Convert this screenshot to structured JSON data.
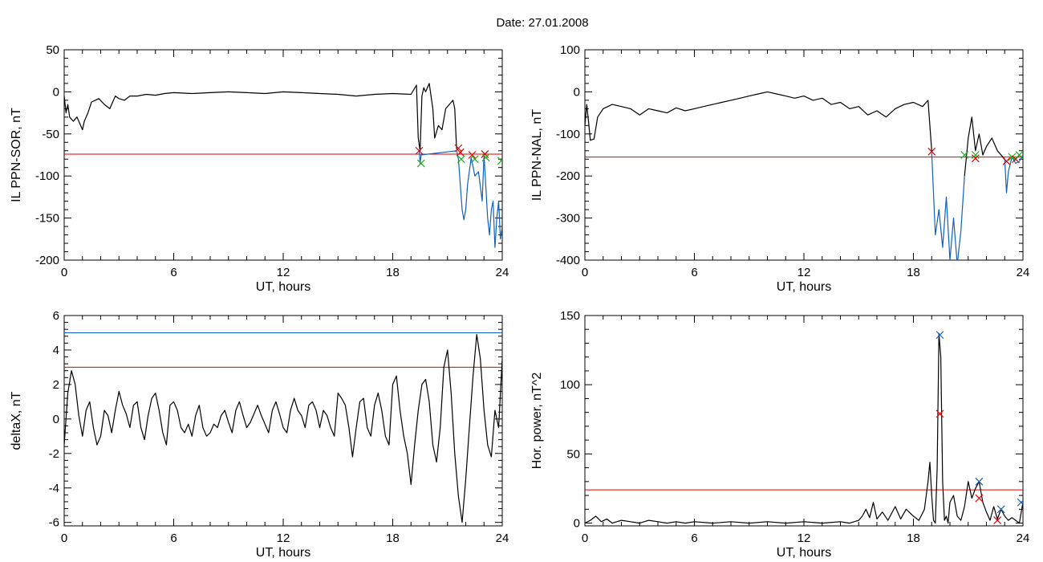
{
  "figure": {
    "title": "Date:  27.01.2008"
  },
  "colors": {
    "black": "#000000",
    "red": "#e00000",
    "blue": "#1060c0",
    "green": "#10b010"
  },
  "chart_data": [
    {
      "type": "line",
      "xlabel": "UT, hours",
      "ylabel": "IL PPN-SOR, nT",
      "xlim": [
        0,
        24
      ],
      "ylim": [
        -200,
        50
      ],
      "xticks": [
        0,
        6,
        12,
        18,
        24
      ],
      "yticks": [
        -200,
        -150,
        -100,
        -50,
        0,
        50
      ],
      "threshold": {
        "value": -74,
        "color": "red"
      },
      "series": [
        {
          "color": "black",
          "x": [
            0,
            0.1,
            0.2,
            0.3,
            0.5,
            0.7,
            0.9,
            1.0,
            1.1,
            1.3,
            1.5,
            1.7,
            1.9,
            2.2,
            2.5,
            2.8,
            3.0,
            3.3,
            3.6,
            4.0,
            4.5,
            5.0,
            5.5,
            6.0,
            7.0,
            8.0,
            9.0,
            10.0,
            11.0,
            12.0,
            13.0,
            14.0,
            15.0,
            16.0,
            17.0,
            18.0,
            19.0,
            19.3,
            19.4,
            19.5,
            19.6,
            19.7,
            19.8,
            20.0,
            20.2,
            20.3,
            20.5,
            20.7,
            20.9,
            21.1,
            21.3,
            21.4,
            21.5
          ],
          "y": [
            -5,
            -25,
            -15,
            -30,
            -35,
            -30,
            -40,
            -45,
            -35,
            -25,
            -12,
            -10,
            -8,
            -15,
            -20,
            -5,
            -8,
            -10,
            -5,
            -5,
            -3,
            -4,
            -2,
            -1,
            -2,
            -1,
            0,
            -1,
            -2,
            0,
            -1,
            -2,
            -3,
            -5,
            -3,
            -2,
            -3,
            8,
            -55,
            -70,
            -5,
            5,
            0,
            10,
            -20,
            -55,
            -40,
            -45,
            -20,
            -15,
            -10,
            -20,
            -68
          ]
        },
        {
          "color": "blue",
          "x": [
            19.45,
            19.5,
            19.55,
            21.5,
            21.6,
            21.7,
            21.8,
            21.9,
            22.0,
            22.1,
            22.3,
            22.5,
            22.7,
            22.9,
            23.0,
            23.2,
            23.3,
            23.4,
            23.5,
            23.6,
            23.7,
            23.8,
            23.9,
            24.0
          ],
          "y": [
            -70,
            -85,
            -75,
            -70,
            -80,
            -110,
            -140,
            -152,
            -140,
            -110,
            -78,
            -100,
            -95,
            -130,
            -75,
            -150,
            -170,
            -140,
            -130,
            -185,
            -150,
            -130,
            -175,
            -160
          ]
        }
      ],
      "markers": [
        {
          "x": 19.45,
          "y": -70,
          "color": "red"
        },
        {
          "x": 19.55,
          "y": -85,
          "color": "green"
        },
        {
          "x": 21.6,
          "y": -67,
          "color": "red"
        },
        {
          "x": 21.7,
          "y": -72,
          "color": "red"
        },
        {
          "x": 21.75,
          "y": -80,
          "color": "green"
        },
        {
          "x": 22.35,
          "y": -75,
          "color": "red"
        },
        {
          "x": 22.5,
          "y": -80,
          "color": "green"
        },
        {
          "x": 23.05,
          "y": -74,
          "color": "red"
        },
        {
          "x": 23.1,
          "y": -78,
          "color": "green"
        },
        {
          "x": 23.95,
          "y": -82,
          "color": "green"
        }
      ]
    },
    {
      "type": "line",
      "xlabel": "UT, hours",
      "ylabel": "IL PPN-NAL, nT",
      "xlim": [
        0,
        24
      ],
      "ylim": [
        -400,
        100
      ],
      "xticks": [
        0,
        6,
        12,
        18,
        24
      ],
      "yticks": [
        -400,
        -300,
        -200,
        -100,
        0,
        100
      ],
      "threshold": {
        "value": -155,
        "color": "red"
      },
      "series": [
        {
          "color": "black",
          "x": [
            0,
            0.1,
            0.2,
            0.3,
            0.5,
            0.7,
            1.0,
            1.5,
            2.0,
            2.5,
            3.0,
            3.5,
            4.0,
            4.5,
            5.0,
            5.5,
            6.0,
            6.5,
            7.0,
            7.5,
            8.0,
            8.5,
            9.0,
            9.5,
            10.0,
            10.5,
            11.0,
            11.5,
            12.0,
            12.5,
            13.0,
            13.5,
            14.0,
            14.5,
            15.0,
            15.5,
            16.0,
            16.5,
            17.0,
            17.5,
            18.0,
            18.5,
            18.8,
            19.0
          ],
          "y": [
            -80,
            -30,
            -70,
            -115,
            -112,
            -60,
            -40,
            -30,
            -35,
            -40,
            -55,
            -40,
            -45,
            -50,
            -38,
            -45,
            -40,
            -35,
            -30,
            -25,
            -20,
            -15,
            -10,
            -5,
            0,
            -5,
            -10,
            -15,
            -10,
            -20,
            -15,
            -30,
            -25,
            -40,
            -35,
            -55,
            -45,
            -60,
            -40,
            -30,
            -25,
            -35,
            -20,
            -140
          ]
        },
        {
          "color": "blue",
          "x": [
            19.0,
            19.2,
            19.4,
            19.6,
            19.8,
            20.0,
            20.2,
            20.4,
            20.6,
            20.8
          ],
          "y": [
            -145,
            -340,
            -280,
            -370,
            -250,
            -400,
            -300,
            -410,
            -330,
            -200
          ]
        },
        {
          "color": "black",
          "x": [
            20.8,
            21.0,
            21.2,
            21.4,
            21.6,
            21.8,
            22.0,
            22.3,
            22.6,
            23.0
          ],
          "y": [
            -200,
            -110,
            -60,
            -140,
            -100,
            -150,
            -130,
            -110,
            -140,
            -160
          ]
        },
        {
          "color": "blue",
          "x": [
            23.0,
            23.1,
            23.2,
            23.4,
            23.6,
            23.8,
            24.0
          ],
          "y": [
            -160,
            -240,
            -190,
            -155,
            -170,
            -165,
            -150
          ]
        }
      ],
      "markers": [
        {
          "x": 19.0,
          "y": -142,
          "color": "red"
        },
        {
          "x": 20.8,
          "y": -150,
          "color": "green"
        },
        {
          "x": 21.4,
          "y": -158,
          "color": "red"
        },
        {
          "x": 21.4,
          "y": -150,
          "color": "green"
        },
        {
          "x": 23.1,
          "y": -165,
          "color": "red"
        },
        {
          "x": 23.4,
          "y": -155,
          "color": "green"
        },
        {
          "x": 23.6,
          "y": -160,
          "color": "red"
        },
        {
          "x": 23.8,
          "y": -150,
          "color": "green"
        }
      ]
    },
    {
      "type": "line",
      "xlabel": "UT, hours",
      "ylabel": "deltaX, nT",
      "xlim": [
        0,
        24
      ],
      "ylim": [
        -6.2,
        6
      ],
      "xticks": [
        0,
        6,
        12,
        18,
        24
      ],
      "yticks": [
        -6,
        -4,
        -2,
        0,
        2,
        4,
        6
      ],
      "thresholds": [
        {
          "value": 5,
          "color": "blue"
        },
        {
          "value": 3,
          "color": "red"
        }
      ],
      "series": [
        {
          "color": "black",
          "x": [
            0,
            0.2,
            0.4,
            0.6,
            0.8,
            1.0,
            1.2,
            1.4,
            1.6,
            1.8,
            2.0,
            2.2,
            2.4,
            2.6,
            2.8,
            3.0,
            3.2,
            3.4,
            3.6,
            3.8,
            4.0,
            4.2,
            4.4,
            4.6,
            4.8,
            5.0,
            5.2,
            5.4,
            5.6,
            5.8,
            6.0,
            6.2,
            6.4,
            6.6,
            6.8,
            7.0,
            7.2,
            7.4,
            7.6,
            7.8,
            8.0,
            8.2,
            8.4,
            8.6,
            8.8,
            9.0,
            9.2,
            9.4,
            9.6,
            9.8,
            10.0,
            10.2,
            10.4,
            10.6,
            10.8,
            11.0,
            11.2,
            11.4,
            11.6,
            11.8,
            12.0,
            12.2,
            12.4,
            12.6,
            12.8,
            13.0,
            13.2,
            13.4,
            13.6,
            13.8,
            14.0,
            14.2,
            14.4,
            14.6,
            14.8,
            15.0,
            15.2,
            15.4,
            15.6,
            15.8,
            16.0,
            16.2,
            16.4,
            16.6,
            16.8,
            17.0,
            17.2,
            17.4,
            17.6,
            17.8,
            18.0,
            18.2,
            18.4,
            18.6,
            18.8,
            19.0,
            19.2,
            19.4,
            19.6,
            19.8,
            20.0,
            20.2,
            20.4,
            20.6,
            20.8,
            21.0,
            21.2,
            21.4,
            21.6,
            21.8,
            22.0,
            22.2,
            22.4,
            22.6,
            22.8,
            23.0,
            23.2,
            23.4,
            23.6,
            23.8,
            24.0
          ],
          "y": [
            -1.5,
            1.5,
            2.8,
            2.0,
            0.2,
            -1.0,
            0.5,
            1.0,
            -0.5,
            -1.5,
            -1.0,
            0.5,
            0.2,
            -0.8,
            0.5,
            1.6,
            0.8,
            0.3,
            -0.5,
            0.8,
            1.0,
            -0.5,
            -1.2,
            0.2,
            1.2,
            1.5,
            0.5,
            -0.8,
            -1.5,
            0.8,
            1.0,
            0.5,
            -0.5,
            -0.8,
            -0.3,
            -1.0,
            0.2,
            0.8,
            -0.5,
            -1.0,
            -0.8,
            -0.3,
            -0.5,
            0.2,
            0.5,
            -0.2,
            -0.8,
            0.5,
            1.0,
            0.2,
            -0.5,
            -0.2,
            0.3,
            0.8,
            0.2,
            -0.3,
            -0.8,
            0.5,
            1.0,
            0.3,
            -0.5,
            -0.8,
            0.5,
            1.2,
            0.5,
            0.2,
            -0.5,
            0.8,
            1.0,
            0.5,
            -0.5,
            0.5,
            0.2,
            -0.5,
            -1.0,
            1.5,
            1.2,
            0.8,
            -0.5,
            -2.2,
            -0.5,
            1.0,
            1.2,
            -0.5,
            -1.0,
            0.8,
            1.5,
            0.5,
            -1.0,
            -1.5,
            2.0,
            2.5,
            0.5,
            -1.0,
            -2.0,
            -3.8,
            -1.5,
            0.5,
            2.0,
            2.3,
            1.0,
            -1.5,
            -2.5,
            -0.5,
            3.0,
            4.0,
            1.5,
            -2.0,
            -4.5,
            -6.0,
            -3.5,
            -0.5,
            2.5,
            4.9,
            3.5,
            0.5,
            -1.5,
            -2.2,
            0.5,
            -0.5,
            3.5
          ]
        }
      ]
    },
    {
      "type": "line",
      "xlabel": "UT, hours",
      "ylabel": "Hor. power, nT^2",
      "xlim": [
        0,
        24
      ],
      "ylim": [
        -2,
        150
      ],
      "xticks": [
        0,
        6,
        12,
        18,
        24
      ],
      "yticks": [
        0,
        50,
        100,
        150
      ],
      "threshold": {
        "value": 24,
        "color": "red"
      },
      "series": [
        {
          "color": "black",
          "x": [
            0,
            0.3,
            0.6,
            0.9,
            1.2,
            1.5,
            2.0,
            2.5,
            3.0,
            3.5,
            4.0,
            4.5,
            5.0,
            5.5,
            6.0,
            7.0,
            8.0,
            9.0,
            10.0,
            11.0,
            12.0,
            13.0,
            14.0,
            14.5,
            15.0,
            15.2,
            15.4,
            15.6,
            15.8,
            16.0,
            16.3,
            16.6,
            17.0,
            17.3,
            17.6,
            18.0,
            18.3,
            18.6,
            18.8,
            18.9,
            19.0,
            19.1,
            19.2,
            19.3,
            19.4,
            19.5,
            19.6,
            19.7,
            19.8,
            19.9,
            20.0,
            20.2,
            20.4,
            20.6,
            20.8,
            21.0,
            21.2,
            21.4,
            21.6,
            21.8,
            22.0,
            22.2,
            22.4,
            22.6,
            22.8,
            23.0,
            23.2,
            23.4,
            23.6,
            23.8,
            24.0
          ],
          "y": [
            0,
            2,
            5,
            1,
            3,
            0,
            2,
            1,
            0,
            2,
            1,
            0,
            1,
            0,
            1,
            0,
            1,
            0,
            1,
            0,
            1,
            0,
            1,
            0,
            2,
            5,
            10,
            4,
            15,
            3,
            8,
            2,
            12,
            3,
            10,
            5,
            2,
            10,
            30,
            44,
            20,
            2,
            0,
            40,
            137,
            120,
            30,
            2,
            5,
            0,
            15,
            20,
            5,
            2,
            12,
            30,
            18,
            25,
            30,
            15,
            8,
            2,
            12,
            3,
            10,
            5,
            2,
            4,
            2,
            0,
            15
          ]
        }
      ],
      "markers": [
        {
          "x": 19.45,
          "y": 136,
          "color": "blue"
        },
        {
          "x": 19.45,
          "y": 79,
          "color": "red"
        },
        {
          "x": 21.6,
          "y": 30,
          "color": "blue"
        },
        {
          "x": 21.6,
          "y": 18,
          "color": "red"
        },
        {
          "x": 22.8,
          "y": 10,
          "color": "blue"
        },
        {
          "x": 22.6,
          "y": 2,
          "color": "red"
        },
        {
          "x": 23.9,
          "y": 15,
          "color": "blue"
        }
      ]
    }
  ]
}
